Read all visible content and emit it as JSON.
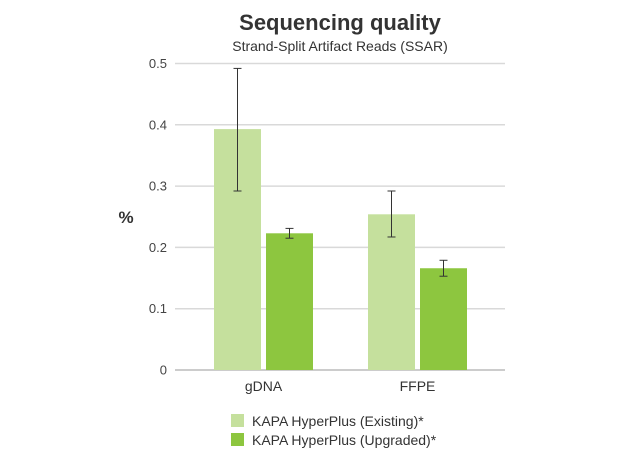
{
  "chart_data": {
    "type": "bar",
    "title": "Sequencing quality",
    "subtitle": "Strand-Split Artifact Reads (SSAR)",
    "xlabel": "",
    "ylabel": "%",
    "ylim": [
      0,
      0.5
    ],
    "yticks": [
      "0",
      "0.1",
      "0.2",
      "0.3",
      "0.4",
      "0.5"
    ],
    "grid": true,
    "legend_position": "bottom",
    "categories": [
      "gDNA",
      "FFPE"
    ],
    "series": [
      {
        "name": "KAPA HyperPlus (Existing)*",
        "color": "#c5e09d",
        "values": [
          0.393,
          0.254
        ],
        "error_low": [
          0.292,
          0.217
        ],
        "error_high": [
          0.492,
          0.292
        ]
      },
      {
        "name": "KAPA HyperPlus (Upgraded)*",
        "color": "#8dc63f",
        "values": [
          0.223,
          0.166
        ],
        "error_low": [
          0.215,
          0.153
        ],
        "error_high": [
          0.231,
          0.179
        ]
      }
    ]
  }
}
